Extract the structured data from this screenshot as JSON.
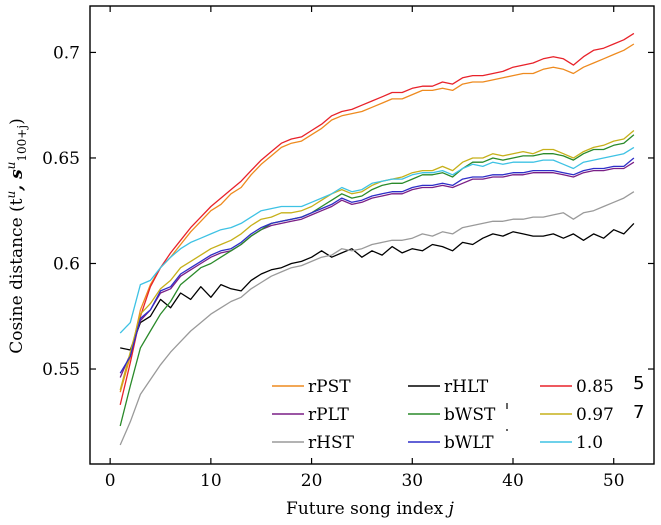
{
  "chart_data": {
    "type": "line",
    "xlabel": "Future song index j",
    "ylabel": "Cosine distance (t",
    "ylabel_sup": "u",
    "ylabel_mid": ", s",
    "ylabel_sup2": "u",
    "ylabel_sub": "100+j",
    "ylabel_end": ")",
    "xlim": [
      -2,
      54
    ],
    "ylim": [
      0.505,
      0.722
    ],
    "xticks": [
      0,
      10,
      20,
      30,
      40,
      50
    ],
    "yticks": [
      0.55,
      0.6,
      0.65,
      0.7
    ],
    "ytick_labels": [
      "0.55",
      "0.6",
      "0.65",
      "0.7"
    ],
    "grid": false,
    "legend_position": "lower-right",
    "x": [
      1,
      2,
      3,
      4,
      5,
      6,
      7,
      8,
      9,
      10,
      11,
      12,
      13,
      14,
      15,
      16,
      17,
      18,
      19,
      20,
      21,
      22,
      23,
      24,
      25,
      26,
      27,
      28,
      29,
      30,
      31,
      32,
      33,
      34,
      35,
      36,
      37,
      38,
      39,
      40,
      41,
      42,
      43,
      44,
      45,
      46,
      47,
      48,
      49,
      50,
      51,
      52
    ],
    "series": [
      {
        "name": "rPST",
        "color": "#ee8a1e",
        "values": [
          0.539,
          0.556,
          0.578,
          0.59,
          0.598,
          0.603,
          0.609,
          0.615,
          0.62,
          0.625,
          0.628,
          0.633,
          0.636,
          0.642,
          0.647,
          0.651,
          0.655,
          0.657,
          0.658,
          0.661,
          0.664,
          0.668,
          0.67,
          0.671,
          0.672,
          0.674,
          0.676,
          0.678,
          0.678,
          0.68,
          0.682,
          0.682,
          0.683,
          0.682,
          0.685,
          0.686,
          0.686,
          0.687,
          0.688,
          0.689,
          0.69,
          0.69,
          0.692,
          0.693,
          0.692,
          0.69,
          0.693,
          0.695,
          0.697,
          0.699,
          0.701,
          0.704
        ]
      },
      {
        "name": "rHLT",
        "color": "#000000",
        "values": [
          0.56,
          0.559,
          0.572,
          0.575,
          0.583,
          0.579,
          0.586,
          0.583,
          0.589,
          0.584,
          0.59,
          0.588,
          0.587,
          0.592,
          0.595,
          0.597,
          0.598,
          0.6,
          0.601,
          0.603,
          0.606,
          0.603,
          0.605,
          0.607,
          0.603,
          0.606,
          0.604,
          0.608,
          0.605,
          0.607,
          0.606,
          0.609,
          0.608,
          0.606,
          0.61,
          0.609,
          0.612,
          0.614,
          0.613,
          0.615,
          0.614,
          0.613,
          0.613,
          0.614,
          0.612,
          0.614,
          0.611,
          0.614,
          0.612,
          0.616,
          0.614,
          0.619
        ]
      },
      {
        "name": "0.85",
        "color": "#e8222a",
        "values": [
          0.533,
          0.553,
          0.575,
          0.589,
          0.598,
          0.605,
          0.611,
          0.617,
          0.622,
          0.627,
          0.631,
          0.635,
          0.639,
          0.644,
          0.649,
          0.653,
          0.657,
          0.659,
          0.66,
          0.663,
          0.666,
          0.67,
          0.672,
          0.673,
          0.675,
          0.677,
          0.679,
          0.681,
          0.681,
          0.683,
          0.684,
          0.684,
          0.686,
          0.685,
          0.688,
          0.689,
          0.689,
          0.69,
          0.691,
          0.693,
          0.694,
          0.695,
          0.697,
          0.698,
          0.697,
          0.694,
          0.698,
          0.701,
          0.702,
          0.704,
          0.706,
          0.709
        ]
      },
      {
        "name": "rPLT",
        "color": "#7a1f86",
        "values": [
          0.546,
          0.557,
          0.573,
          0.578,
          0.586,
          0.588,
          0.594,
          0.597,
          0.6,
          0.603,
          0.605,
          0.606,
          0.609,
          0.613,
          0.616,
          0.618,
          0.619,
          0.62,
          0.621,
          0.623,
          0.625,
          0.627,
          0.63,
          0.628,
          0.629,
          0.631,
          0.632,
          0.633,
          0.633,
          0.635,
          0.636,
          0.636,
          0.637,
          0.636,
          0.638,
          0.64,
          0.64,
          0.641,
          0.641,
          0.642,
          0.642,
          0.643,
          0.643,
          0.643,
          0.642,
          0.641,
          0.643,
          0.644,
          0.644,
          0.645,
          0.645,
          0.648
        ]
      },
      {
        "name": "bWST",
        "color": "#2a8a2a",
        "values": [
          0.523,
          0.542,
          0.56,
          0.568,
          0.576,
          0.582,
          0.59,
          0.594,
          0.598,
          0.6,
          0.603,
          0.606,
          0.609,
          0.613,
          0.616,
          0.619,
          0.62,
          0.621,
          0.622,
          0.624,
          0.627,
          0.63,
          0.633,
          0.631,
          0.632,
          0.635,
          0.637,
          0.638,
          0.638,
          0.64,
          0.642,
          0.642,
          0.643,
          0.641,
          0.645,
          0.648,
          0.648,
          0.65,
          0.649,
          0.65,
          0.651,
          0.651,
          0.652,
          0.652,
          0.651,
          0.649,
          0.652,
          0.654,
          0.654,
          0.656,
          0.657,
          0.661
        ]
      },
      {
        "name": "0.97",
        "color": "#c6b01a",
        "values": [
          0.54,
          0.558,
          0.576,
          0.581,
          0.588,
          0.592,
          0.598,
          0.601,
          0.604,
          0.607,
          0.609,
          0.611,
          0.614,
          0.618,
          0.621,
          0.622,
          0.624,
          0.624,
          0.625,
          0.627,
          0.63,
          0.633,
          0.635,
          0.633,
          0.634,
          0.637,
          0.639,
          0.64,
          0.641,
          0.643,
          0.644,
          0.644,
          0.646,
          0.644,
          0.648,
          0.65,
          0.65,
          0.652,
          0.651,
          0.652,
          0.653,
          0.652,
          0.654,
          0.654,
          0.652,
          0.65,
          0.653,
          0.655,
          0.656,
          0.658,
          0.659,
          0.663
        ]
      },
      {
        "name": "rHST",
        "color": "#9a9a9a",
        "values": [
          0.514,
          0.525,
          0.538,
          0.545,
          0.552,
          0.558,
          0.563,
          0.568,
          0.572,
          0.576,
          0.579,
          0.582,
          0.584,
          0.588,
          0.591,
          0.594,
          0.596,
          0.598,
          0.599,
          0.601,
          0.603,
          0.604,
          0.607,
          0.606,
          0.607,
          0.609,
          0.61,
          0.611,
          0.611,
          0.612,
          0.614,
          0.613,
          0.615,
          0.614,
          0.617,
          0.618,
          0.619,
          0.62,
          0.62,
          0.621,
          0.621,
          0.622,
          0.622,
          0.623,
          0.624,
          0.621,
          0.624,
          0.625,
          0.627,
          0.629,
          0.631,
          0.634
        ]
      },
      {
        "name": "bWLT",
        "color": "#2e2ec8",
        "values": [
          0.548,
          0.556,
          0.574,
          0.578,
          0.587,
          0.589,
          0.595,
          0.598,
          0.601,
          0.604,
          0.606,
          0.607,
          0.61,
          0.614,
          0.617,
          0.619,
          0.62,
          0.621,
          0.622,
          0.624,
          0.626,
          0.628,
          0.631,
          0.629,
          0.63,
          0.632,
          0.633,
          0.634,
          0.634,
          0.636,
          0.637,
          0.637,
          0.638,
          0.637,
          0.64,
          0.641,
          0.641,
          0.642,
          0.642,
          0.643,
          0.643,
          0.644,
          0.644,
          0.644,
          0.643,
          0.642,
          0.644,
          0.645,
          0.645,
          0.646,
          0.646,
          0.65
        ]
      },
      {
        "name": "1.0",
        "color": "#3ec2e4",
        "values": [
          0.567,
          0.572,
          0.59,
          0.592,
          0.598,
          0.603,
          0.607,
          0.61,
          0.612,
          0.614,
          0.616,
          0.617,
          0.619,
          0.622,
          0.625,
          0.626,
          0.627,
          0.627,
          0.627,
          0.629,
          0.631,
          0.633,
          0.636,
          0.634,
          0.635,
          0.638,
          0.639,
          0.64,
          0.64,
          0.642,
          0.643,
          0.643,
          0.644,
          0.642,
          0.645,
          0.647,
          0.646,
          0.648,
          0.647,
          0.648,
          0.648,
          0.648,
          0.649,
          0.649,
          0.647,
          0.645,
          0.648,
          0.649,
          0.65,
          0.651,
          0.652,
          0.655
        ]
      }
    ],
    "legend_columns": [
      [
        "rPST",
        "rPLT",
        "rHST"
      ],
      [
        "rHLT",
        "bWST",
        "bWLT"
      ],
      [
        "0.85",
        "0.97",
        "1.0"
      ]
    ],
    "stray_marks": [
      "5",
      "7"
    ]
  }
}
